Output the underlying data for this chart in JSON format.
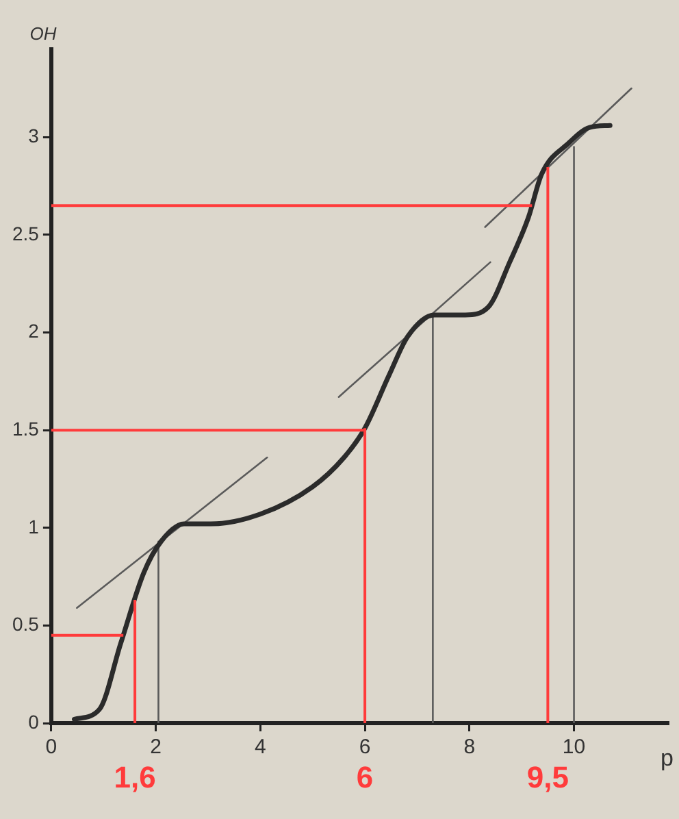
{
  "chart_data": {
    "type": "line",
    "ylabel": "OH",
    "xlabel": "p",
    "xlim": [
      0,
      11.8
    ],
    "ylim": [
      0,
      3.45
    ],
    "xticks": [
      0,
      2,
      4,
      6,
      8,
      10
    ],
    "yticks": [
      0,
      0.5,
      1,
      1.5,
      2,
      2.5,
      3
    ],
    "grid": false,
    "legend": false,
    "marker": "none",
    "line_style": "solid",
    "series": [
      {
        "color": "#2b2b2b",
        "x": [
          0.44,
          0.92,
          1.33,
          1.77,
          2.1,
          2.54,
          3.05,
          4.0,
          5.0,
          5.6,
          6.0,
          6.46,
          6.82,
          7.33,
          7.92,
          8.36,
          8.77,
          9.13,
          9.38,
          9.9,
          10.3,
          10.69
        ],
        "values": [
          0.02,
          0.07,
          0.41,
          0.77,
          0.93,
          1.02,
          1.02,
          1.07,
          1.21,
          1.36,
          1.51,
          1.78,
          1.98,
          2.09,
          2.09,
          2.13,
          2.36,
          2.59,
          2.81,
          2.97,
          3.05,
          3.06
        ]
      },
      {
        "color": "#5a5a5a",
        "x": [
          0.49,
          4.13
        ],
        "values": [
          0.59,
          1.36
        ]
      },
      {
        "color": "#5a5a5a",
        "x": [
          5.5,
          8.4
        ],
        "values": [
          1.67,
          2.36
        ]
      },
      {
        "color": "#5a5a5a",
        "x": [
          8.3,
          11.1
        ],
        "values": [
          2.54,
          3.25
        ]
      },
      {
        "color": "#5a5a5a",
        "x": [
          2.05,
          2.05
        ],
        "values": [
          0.93,
          0
        ]
      },
      {
        "color": "#5a5a5a",
        "x": [
          7.3,
          7.3
        ],
        "values": [
          2.09,
          0
        ]
      },
      {
        "color": "#5a5a5a",
        "x": [
          10.0,
          10.0
        ],
        "values": [
          2.95,
          0
        ]
      }
    ],
    "ref_lines": [
      {
        "axis": "x",
        "value": 1.6,
        "label": "1,6",
        "color": "#ff3b3b"
      },
      {
        "axis": "x",
        "value": 6,
        "label": "6",
        "color": "#ff3b3b"
      },
      {
        "axis": "x",
        "value": 9.5,
        "label": "9,5",
        "color": "#ff3b3b"
      },
      {
        "axis": "y",
        "value": 0.45,
        "color": "#ff3b3b"
      },
      {
        "axis": "y",
        "value": 1.5,
        "color": "#ff3b3b"
      },
      {
        "axis": "y",
        "value": 2.65,
        "color": "#ff3b3b"
      }
    ]
  }
}
